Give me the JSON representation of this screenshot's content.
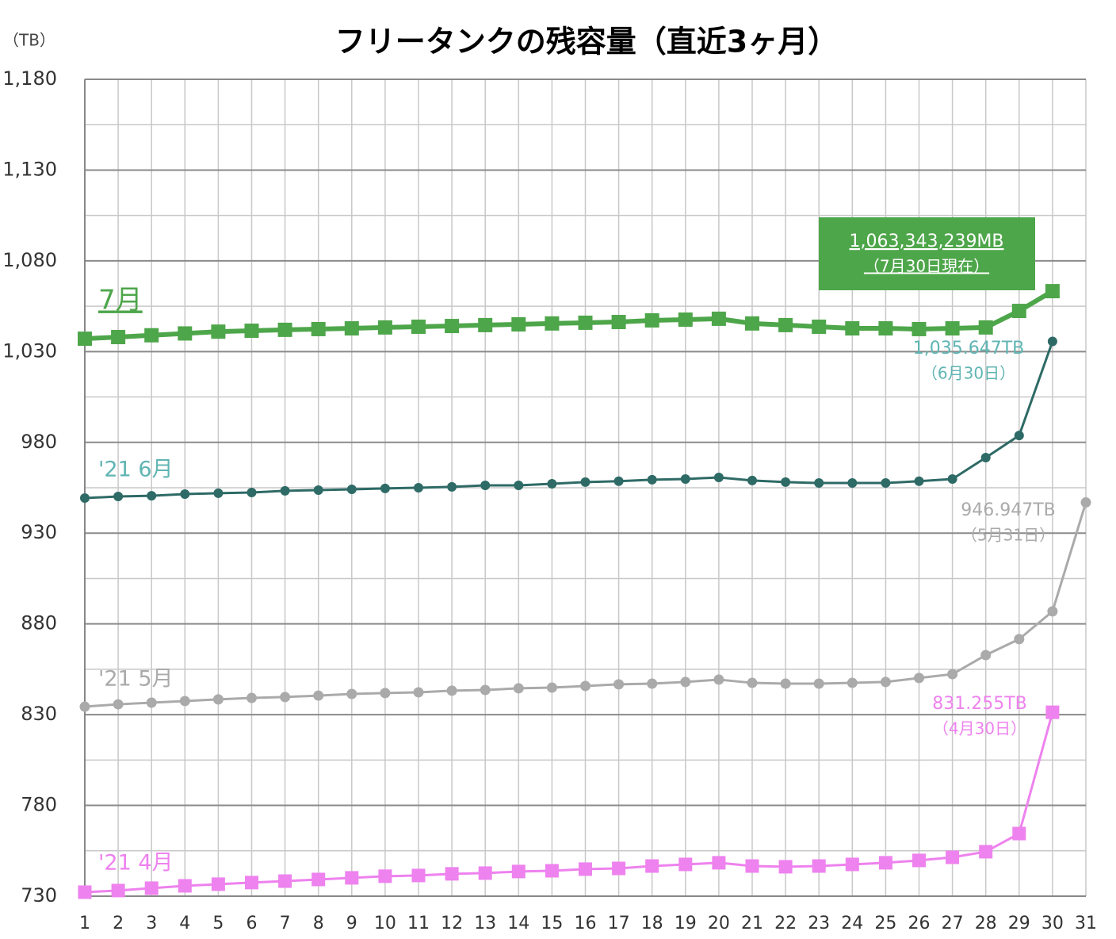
{
  "chart_data": {
    "type": "line",
    "title": "フリータンクの残容量（直近3ヶ月）",
    "y_unit": "（TB）",
    "x": [
      1,
      2,
      3,
      4,
      5,
      6,
      7,
      8,
      9,
      10,
      11,
      12,
      13,
      14,
      15,
      16,
      17,
      18,
      19,
      20,
      21,
      22,
      23,
      24,
      25,
      26,
      27,
      28,
      29,
      30,
      31
    ],
    "xlim": [
      1,
      31
    ],
    "xticks": [
      1,
      2,
      3,
      4,
      5,
      6,
      7,
      8,
      9,
      10,
      11,
      12,
      13,
      14,
      15,
      16,
      17,
      18,
      19,
      20,
      21,
      22,
      23,
      24,
      25,
      26,
      27,
      28,
      29,
      30,
      31
    ],
    "ylim": [
      730,
      1180
    ],
    "yticks": [
      730,
      780,
      830,
      880,
      930,
      980,
      {
        "value": 1030,
        "label": "1,030"
      },
      {
        "value": 1080,
        "label": "1,080"
      },
      {
        "value": 1130,
        "label": "1,130"
      },
      {
        "value": 1180,
        "label": "1,180"
      }
    ],
    "yminorticks": [
      755,
      805,
      855,
      905,
      955,
      1005,
      1055,
      1105,
      1155
    ],
    "grid": true,
    "series": [
      {
        "name": "7月",
        "color": "#4ea64a",
        "marker": "square",
        "values": [
          1037.1,
          1038,
          1039,
          1040,
          1041,
          1041.5,
          1042,
          1042.4,
          1042.8,
          1043.3,
          1043.7,
          1044.1,
          1044.6,
          1045,
          1045.5,
          1045.9,
          1046.3,
          1047.2,
          1047.6,
          1048.1,
          1045.5,
          1044.6,
          1043.7,
          1042.8,
          1042.8,
          1042.4,
          1042.8,
          1043.3,
          1052.4,
          1063.3,
          null
        ]
      },
      {
        "name": "'21 6月",
        "color": "#2e6a66",
        "marker": "circle",
        "values": [
          949.3,
          950.2,
          950.6,
          951.5,
          952,
          952.4,
          953.3,
          953.7,
          954.1,
          954.6,
          955,
          955.5,
          956.3,
          956.3,
          957.2,
          958.1,
          958.6,
          959.4,
          959.8,
          960.7,
          959,
          958.1,
          957.6,
          957.6,
          957.6,
          958.6,
          959.8,
          971.6,
          983.8,
          1035.6,
          null
        ]
      },
      {
        "name": "'21 5月",
        "color": "#aaaaaa",
        "marker": "circle",
        "values": [
          834.4,
          835.7,
          836.6,
          837.5,
          838.4,
          839.2,
          839.7,
          840.5,
          841.4,
          841.9,
          842.3,
          843.2,
          843.6,
          844.5,
          844.9,
          845.8,
          846.7,
          847.1,
          848,
          849.3,
          847.5,
          847.1,
          847.1,
          847.5,
          848,
          850.2,
          852.3,
          862.8,
          871.6,
          886.9,
          946.9
        ]
      },
      {
        "name": "'21 4月",
        "color": "#ee82ee",
        "marker": "square",
        "values": [
          732.2,
          733.1,
          734.4,
          735.7,
          736.6,
          737.5,
          738.3,
          739.2,
          740.1,
          741,
          741.4,
          742.3,
          742.7,
          743.6,
          744,
          744.9,
          745.3,
          746.6,
          747.5,
          748.4,
          746.6,
          746.2,
          746.6,
          747.5,
          748.4,
          749.7,
          751.4,
          754.5,
          764.5,
          831.3,
          null
        ]
      }
    ],
    "annotations": [
      {
        "lines": [
          "1,063,343,239MB",
          "（7月30日現在）"
        ]
      },
      {
        "lines": [
          "1,035.647TB",
          "（6月30日）"
        ]
      },
      {
        "lines": [
          "946.947TB",
          "（5月31日）"
        ]
      },
      {
        "lines": [
          "831.255TB",
          "（4月30日）"
        ]
      }
    ]
  }
}
